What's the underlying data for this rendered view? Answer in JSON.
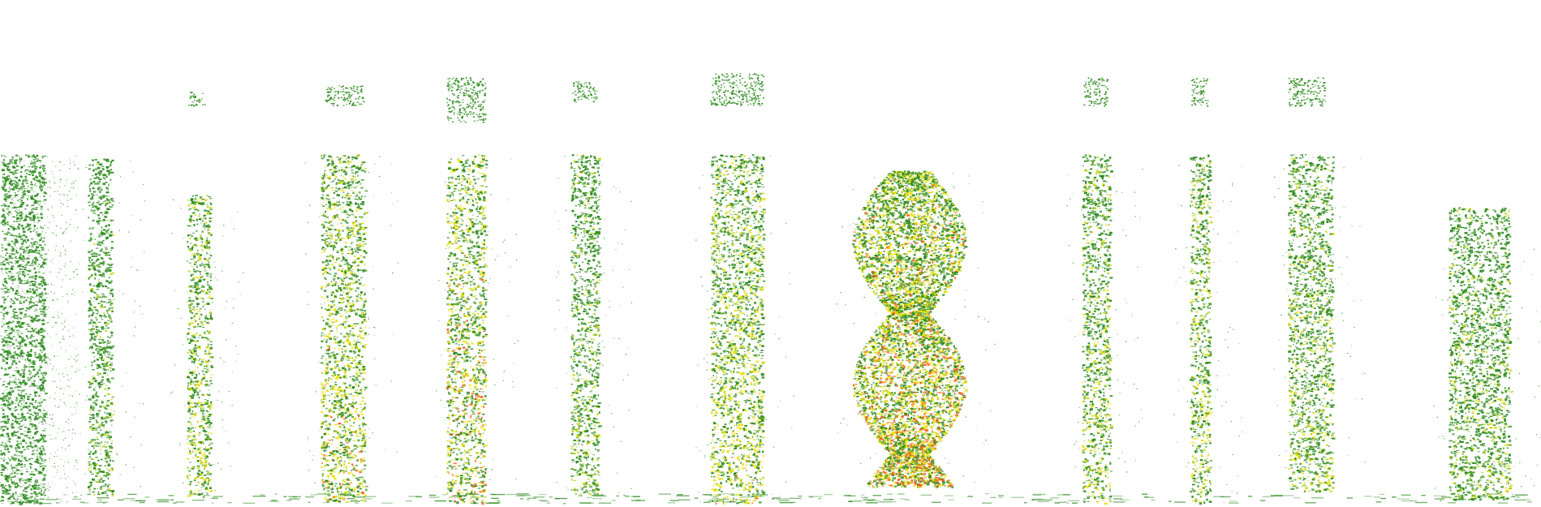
{
  "figure": {
    "kind": "spectrogram-collage",
    "background": "#ffffff",
    "palette": {
      "low": "#2e8b1e",
      "mid": "#c8d614",
      "high": "#f0e000",
      "peak": "#ff5a1a"
    },
    "segments": [
      {
        "id": "noise-field-left",
        "intensity": 0.35
      },
      {
        "id": "narrow-pair",
        "intensity": 0.55
      },
      {
        "id": "dotted-column",
        "intensity": 0.7
      },
      {
        "id": "double-column",
        "intensity": 0.8
      },
      {
        "id": "wide-column",
        "intensity": 0.85
      },
      {
        "id": "sparse-column",
        "intensity": 0.6
      },
      {
        "id": "dense-column",
        "intensity": 0.75
      },
      {
        "id": "cloud-cluster",
        "intensity": 0.9
      },
      {
        "id": "narrow-column-a",
        "intensity": 0.7
      },
      {
        "id": "narrow-column-b",
        "intensity": 0.7
      },
      {
        "id": "tapered-column",
        "intensity": 0.65
      },
      {
        "id": "short-column-right",
        "intensity": 0.6
      }
    ]
  }
}
